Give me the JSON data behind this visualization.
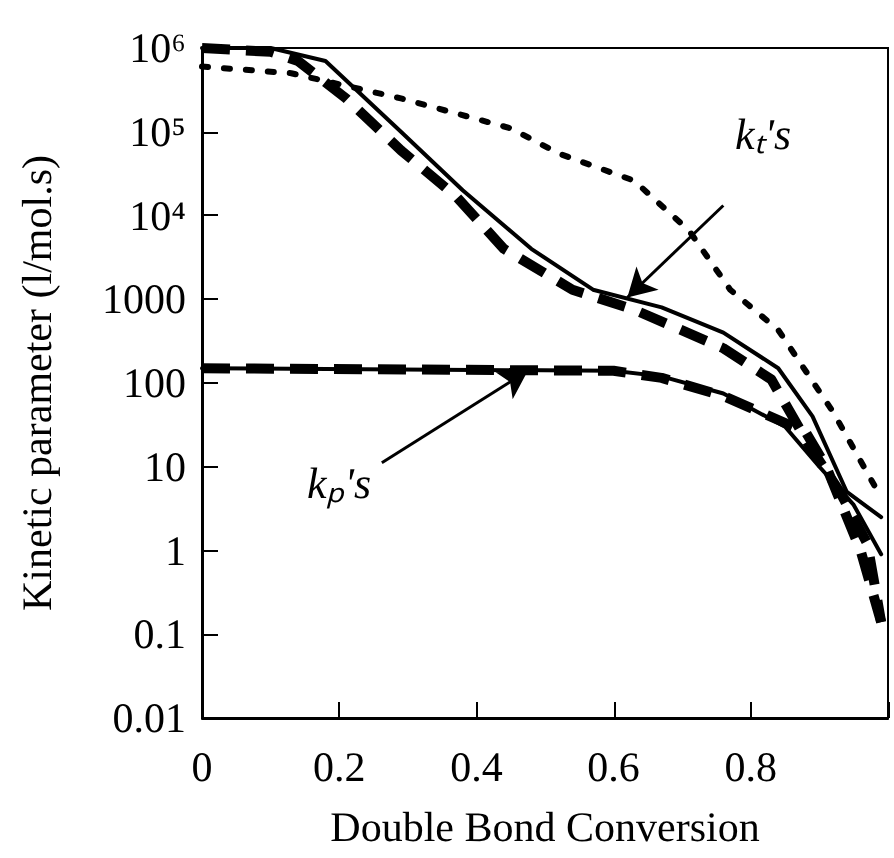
{
  "chart_data": {
    "type": "line",
    "xlabel": "Double Bond Conversion",
    "ylabel": "Kinetic parameter (l/mol.s)",
    "log": "y",
    "grid": false,
    "marker": "none",
    "xlim": [
      0,
      1
    ],
    "xticks": [
      0,
      0.2,
      0.4,
      0.6,
      0.8,
      {
        "value": 1,
        "label": null
      }
    ],
    "ylim": [
      0.01,
      1000000
    ],
    "yticks": [
      {
        "value": 0.01,
        "label": "0.01"
      },
      {
        "value": 0.1,
        "label": "0.1"
      },
      1,
      10,
      100,
      1000,
      {
        "value": 10000,
        "label": "10⁴"
      },
      {
        "value": 100000,
        "label": "10⁵"
      },
      {
        "value": 1000000,
        "label": "10⁶"
      }
    ],
    "series": [
      {
        "color": "#000000",
        "line_style": "solid",
        "x": [
          0,
          0.1,
          0.18,
          0.29,
          0.38,
          0.48,
          0.57,
          0.67,
          0.76,
          0.84,
          0.89,
          0.94,
          0.99
        ],
        "values": [
          1000000,
          1000000,
          700000,
          100000,
          20000,
          4000,
          1300,
          800,
          400,
          150,
          40,
          5,
          2.5
        ]
      },
      {
        "color": "#000000",
        "line_style": "dashed",
        "x": [
          0,
          0.1,
          0.14,
          0.21,
          0.29,
          0.37,
          0.44,
          0.54,
          0.63,
          0.76,
          0.83,
          0.885,
          0.93,
          0.97,
          0.99
        ],
        "values": [
          1000000,
          900000,
          700000,
          250000,
          60000,
          17000,
          4000,
          1300,
          750,
          260,
          110,
          18,
          5,
          1.2,
          0.14
        ]
      },
      {
        "color": "#000000",
        "line_style": "dotted",
        "x": [
          0,
          0.13,
          0.29,
          0.45,
          0.52,
          0.63,
          0.71,
          0.77,
          0.84,
          0.92,
          0.98
        ],
        "values": [
          600000,
          500000,
          250000,
          110000,
          55000,
          26000,
          6600,
          1300,
          430,
          45,
          6
        ]
      },
      {
        "color": "#000000",
        "line_style": "solid",
        "x": [
          0,
          0.6,
          0.67,
          0.76,
          0.85,
          0.9,
          0.95,
          0.99
        ],
        "values": [
          150,
          140,
          120,
          75,
          30,
          10,
          3.5,
          0.9
        ]
      },
      {
        "color": "#000000",
        "line_style": "dashed",
        "x": [
          0,
          0.6,
          0.67,
          0.76,
          0.88,
          0.91,
          0.96,
          0.99
        ],
        "values": [
          150,
          140,
          115,
          70,
          26,
          10,
          1,
          0.14
        ]
      }
    ],
    "annotations": [
      {
        "text": "kₜ's",
        "x": 0.62,
        "y": 1050
      },
      {
        "text": "kₚ's",
        "x": 0.475,
        "y": 140
      }
    ]
  }
}
